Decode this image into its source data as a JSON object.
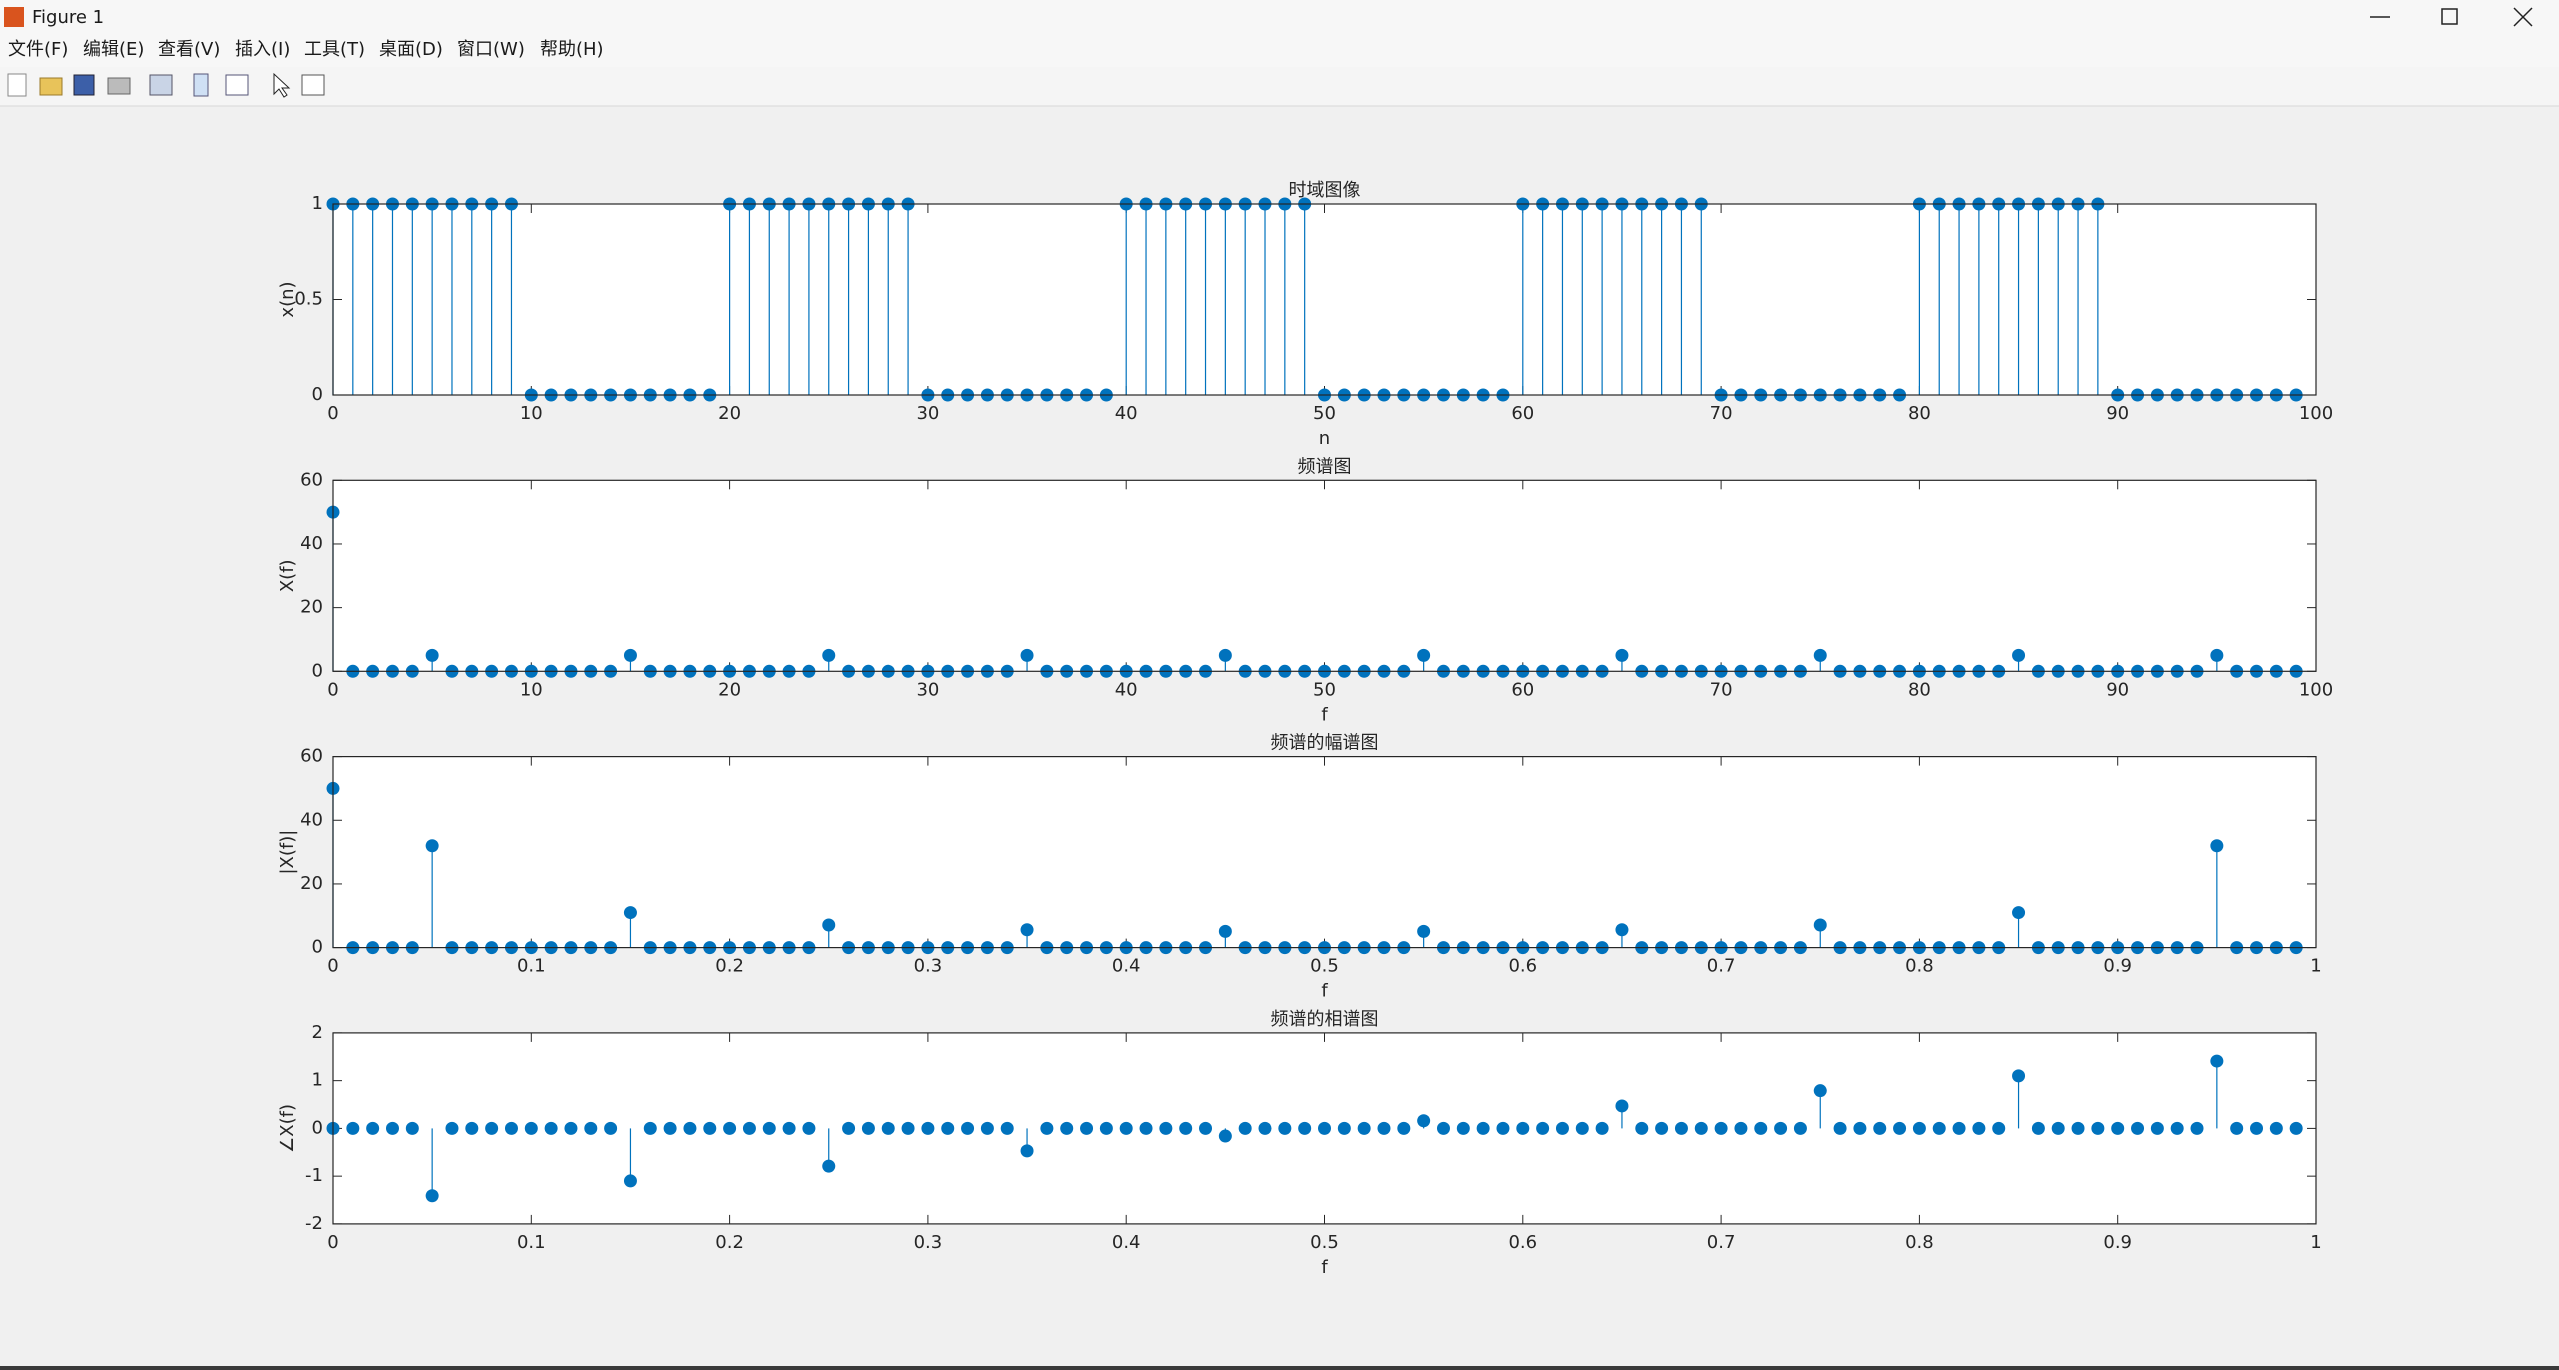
{
  "window": {
    "title": "Figure 1",
    "menu": [
      "文件(F)",
      "编辑(E)",
      "查看(V)",
      "插入(I)",
      "工具(T)",
      "桌面(D)",
      "窗口(W)",
      "帮助(H)"
    ]
  },
  "chart_data": [
    {
      "type": "stem",
      "title": "时域图像",
      "x_label": "n",
      "y_label": "x(n)",
      "color": "#0072bd",
      "x": [
        0,
        1,
        2,
        3,
        4,
        5,
        6,
        7,
        8,
        9,
        10,
        11,
        12,
        13,
        14,
        15,
        16,
        17,
        18,
        19,
        20,
        21,
        22,
        23,
        24,
        25,
        26,
        27,
        28,
        29,
        30,
        31,
        32,
        33,
        34,
        35,
        36,
        37,
        38,
        39,
        40,
        41,
        42,
        43,
        44,
        45,
        46,
        47,
        48,
        49,
        50,
        51,
        52,
        53,
        54,
        55,
        56,
        57,
        58,
        59,
        60,
        61,
        62,
        63,
        64,
        65,
        66,
        67,
        68,
        69,
        70,
        71,
        72,
        73,
        74,
        75,
        76,
        77,
        78,
        79,
        80,
        81,
        82,
        83,
        84,
        85,
        86,
        87,
        88,
        89,
        90,
        91,
        92,
        93,
        94,
        95,
        96,
        97,
        98,
        99
      ],
      "values": [
        1,
        1,
        1,
        1,
        1,
        1,
        1,
        1,
        1,
        1,
        0,
        0,
        0,
        0,
        0,
        0,
        0,
        0,
        0,
        0,
        1,
        1,
        1,
        1,
        1,
        1,
        1,
        1,
        1,
        1,
        0,
        0,
        0,
        0,
        0,
        0,
        0,
        0,
        0,
        0,
        1,
        1,
        1,
        1,
        1,
        1,
        1,
        1,
        1,
        1,
        0,
        0,
        0,
        0,
        0,
        0,
        0,
        0,
        0,
        0,
        1,
        1,
        1,
        1,
        1,
        1,
        1,
        1,
        1,
        1,
        0,
        0,
        0,
        0,
        0,
        0,
        0,
        0,
        0,
        0,
        1,
        1,
        1,
        1,
        1,
        1,
        1,
        1,
        1,
        1,
        0,
        0,
        0,
        0,
        0,
        0,
        0,
        0,
        0,
        0
      ],
      "xlim": [
        0,
        100
      ],
      "xticks": [
        0,
        10,
        20,
        30,
        40,
        50,
        60,
        70,
        80,
        90,
        100
      ],
      "ylim": [
        0,
        1
      ],
      "yticks": [
        0,
        0.5,
        1
      ]
    },
    {
      "type": "stem",
      "title": "频谱图",
      "x_label": "f",
      "y_label": "X(f)",
      "color": "#0072bd",
      "x": [
        0,
        1,
        2,
        3,
        4,
        5,
        6,
        7,
        8,
        9,
        10,
        11,
        12,
        13,
        14,
        15,
        16,
        17,
        18,
        19,
        20,
        21,
        22,
        23,
        24,
        25,
        26,
        27,
        28,
        29,
        30,
        31,
        32,
        33,
        34,
        35,
        36,
        37,
        38,
        39,
        40,
        41,
        42,
        43,
        44,
        45,
        46,
        47,
        48,
        49,
        50,
        51,
        52,
        53,
        54,
        55,
        56,
        57,
        58,
        59,
        60,
        61,
        62,
        63,
        64,
        65,
        66,
        67,
        68,
        69,
        70,
        71,
        72,
        73,
        74,
        75,
        76,
        77,
        78,
        79,
        80,
        81,
        82,
        83,
        84,
        85,
        86,
        87,
        88,
        89,
        90,
        91,
        92,
        93,
        94,
        95,
        96,
        97,
        98,
        99
      ],
      "values": [
        50,
        0,
        0,
        0,
        0,
        5,
        0,
        0,
        0,
        0,
        0,
        0,
        0,
        0,
        0,
        5,
        0,
        0,
        0,
        0,
        0,
        0,
        0,
        0,
        0,
        5,
        0,
        0,
        0,
        0,
        0,
        0,
        0,
        0,
        0,
        5,
        0,
        0,
        0,
        0,
        0,
        0,
        0,
        0,
        0,
        5,
        0,
        0,
        0,
        0,
        0,
        0,
        0,
        0,
        0,
        5,
        0,
        0,
        0,
        0,
        0,
        0,
        0,
        0,
        0,
        5,
        0,
        0,
        0,
        0,
        0,
        0,
        0,
        0,
        0,
        5,
        0,
        0,
        0,
        0,
        0,
        0,
        0,
        0,
        0,
        5,
        0,
        0,
        0,
        0,
        0,
        0,
        0,
        0,
        0,
        5,
        0,
        0,
        0,
        0
      ],
      "xlim": [
        0,
        100
      ],
      "xticks": [
        0,
        10,
        20,
        30,
        40,
        50,
        60,
        70,
        80,
        90,
        100
      ],
      "ylim": [
        0,
        60
      ],
      "yticks": [
        0,
        20,
        40,
        60
      ]
    },
    {
      "type": "stem",
      "title": "频谱的幅谱图",
      "x_label": "f",
      "y_label": "|X(f)|",
      "color": "#0072bd",
      "x": [
        0,
        0.01,
        0.02,
        0.03,
        0.04,
        0.05,
        0.06,
        0.07,
        0.08,
        0.09,
        0.1,
        0.11,
        0.12,
        0.13,
        0.14,
        0.15,
        0.16,
        0.17,
        0.18,
        0.19,
        0.2,
        0.21,
        0.22,
        0.23,
        0.24,
        0.25,
        0.26,
        0.27,
        0.28,
        0.29,
        0.3,
        0.31,
        0.32,
        0.33,
        0.34,
        0.35,
        0.36,
        0.37,
        0.38,
        0.39,
        0.4,
        0.41,
        0.42,
        0.43,
        0.44,
        0.45,
        0.46,
        0.47,
        0.48,
        0.49,
        0.5,
        0.51,
        0.52,
        0.53,
        0.54,
        0.55,
        0.56,
        0.57,
        0.58,
        0.59,
        0.6,
        0.61,
        0.62,
        0.63,
        0.64,
        0.65,
        0.66,
        0.67,
        0.68,
        0.69,
        0.7,
        0.71,
        0.72,
        0.73,
        0.74,
        0.75,
        0.76,
        0.77,
        0.78,
        0.79,
        0.8,
        0.81,
        0.82,
        0.83,
        0.84,
        0.85,
        0.86,
        0.87,
        0.88,
        0.89,
        0.9,
        0.91,
        0.92,
        0.93,
        0.94,
        0.95,
        0.96,
        0.97,
        0.98,
        0.99
      ],
      "values": [
        50,
        0,
        0,
        0,
        0,
        32,
        0,
        0,
        0,
        0,
        0,
        0,
        0,
        0,
        0,
        11,
        0,
        0,
        0,
        0,
        0,
        0,
        0,
        0,
        0,
        7.1,
        0,
        0,
        0,
        0,
        0,
        0,
        0,
        0,
        0,
        5.6,
        0,
        0,
        0,
        0,
        0,
        0,
        0,
        0,
        0,
        5.1,
        0,
        0,
        0,
        0,
        0,
        0,
        0,
        0,
        0,
        5.1,
        0,
        0,
        0,
        0,
        0,
        0,
        0,
        0,
        0,
        5.6,
        0,
        0,
        0,
        0,
        0,
        0,
        0,
        0,
        0,
        7.1,
        0,
        0,
        0,
        0,
        0,
        0,
        0,
        0,
        0,
        11,
        0,
        0,
        0,
        0,
        0,
        0,
        0,
        0,
        0,
        32,
        0,
        0,
        0,
        0
      ],
      "xlim": [
        0,
        1
      ],
      "xticks": [
        0,
        0.1,
        0.2,
        0.3,
        0.4,
        0.5,
        0.6,
        0.7,
        0.8,
        0.9,
        1
      ],
      "ylim": [
        0,
        60
      ],
      "yticks": [
        0,
        20,
        40,
        60
      ]
    },
    {
      "type": "stem",
      "title": "频谱的相谱图",
      "x_label": "f",
      "y_label": "∠X(f)",
      "color": "#0072bd",
      "x": [
        0,
        0.01,
        0.02,
        0.03,
        0.04,
        0.05,
        0.06,
        0.07,
        0.08,
        0.09,
        0.1,
        0.11,
        0.12,
        0.13,
        0.14,
        0.15,
        0.16,
        0.17,
        0.18,
        0.19,
        0.2,
        0.21,
        0.22,
        0.23,
        0.24,
        0.25,
        0.26,
        0.27,
        0.28,
        0.29,
        0.3,
        0.31,
        0.32,
        0.33,
        0.34,
        0.35,
        0.36,
        0.37,
        0.38,
        0.39,
        0.4,
        0.41,
        0.42,
        0.43,
        0.44,
        0.45,
        0.46,
        0.47,
        0.48,
        0.49,
        0.5,
        0.51,
        0.52,
        0.53,
        0.54,
        0.55,
        0.56,
        0.57,
        0.58,
        0.59,
        0.6,
        0.61,
        0.62,
        0.63,
        0.64,
        0.65,
        0.66,
        0.67,
        0.68,
        0.69,
        0.7,
        0.71,
        0.72,
        0.73,
        0.74,
        0.75,
        0.76,
        0.77,
        0.78,
        0.79,
        0.8,
        0.81,
        0.82,
        0.83,
        0.84,
        0.85,
        0.86,
        0.87,
        0.88,
        0.89,
        0.9,
        0.91,
        0.92,
        0.93,
        0.94,
        0.95,
        0.96,
        0.97,
        0.98,
        0.99
      ],
      "values": [
        0,
        0,
        0,
        0,
        0,
        -1.41,
        0,
        0,
        0,
        0,
        0,
        0,
        0,
        0,
        0,
        -1.1,
        0,
        0,
        0,
        0,
        0,
        0,
        0,
        0,
        0,
        -0.79,
        0,
        0,
        0,
        0,
        0,
        0,
        0,
        0,
        0,
        -0.47,
        0,
        0,
        0,
        0,
        0,
        0,
        0,
        0,
        0,
        -0.16,
        0,
        0,
        0,
        0,
        0,
        0,
        0,
        0,
        0,
        0.16,
        0,
        0,
        0,
        0,
        0,
        0,
        0,
        0,
        0,
        0.47,
        0,
        0,
        0,
        0,
        0,
        0,
        0,
        0,
        0,
        0.79,
        0,
        0,
        0,
        0,
        0,
        0,
        0,
        0,
        0,
        1.1,
        0,
        0,
        0,
        0,
        0,
        0,
        0,
        0,
        0,
        1.41,
        0,
        0,
        0,
        0
      ],
      "xlim": [
        0,
        1
      ],
      "xticks": [
        0,
        0.1,
        0.2,
        0.3,
        0.4,
        0.5,
        0.6,
        0.7,
        0.8,
        0.9,
        1
      ],
      "ylim": [
        -2,
        2
      ],
      "yticks": [
        -2,
        -1,
        0,
        1,
        2
      ]
    }
  ]
}
